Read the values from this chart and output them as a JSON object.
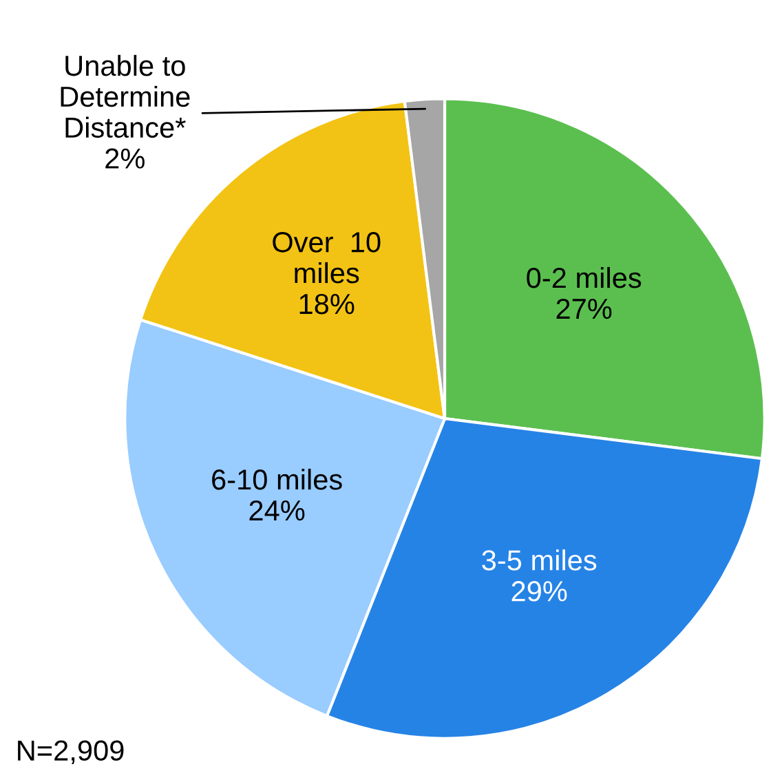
{
  "chart_data": {
    "type": "pie",
    "categories": [
      "0-2 miles",
      "3-5 miles",
      "6-10 miles",
      "Over  10\nmiles",
      "Unable to\nDetermine\nDistance*"
    ],
    "values": [
      27,
      29,
      24,
      18,
      2
    ],
    "value_labels": [
      "27%",
      "29%",
      "24%",
      "18%",
      "2%"
    ],
    "colors": [
      "#5bbf4f",
      "#2683e6",
      "#99ccff",
      "#f2c314",
      "#a6a6a6"
    ],
    "annotations": [
      "N=2,909"
    ]
  }
}
